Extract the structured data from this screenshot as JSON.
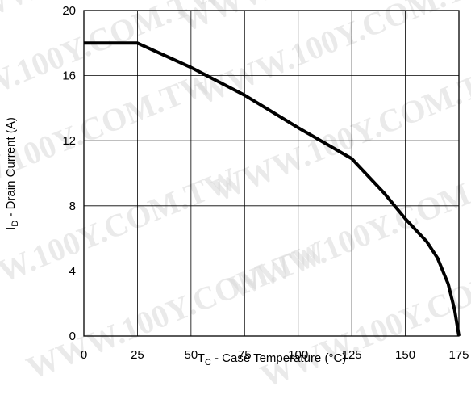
{
  "chart_data": {
    "type": "line",
    "xlabel": {
      "main": "T",
      "sub": "C",
      "rest": " - Case Temperature (°C)"
    },
    "ylabel": {
      "main": "I",
      "sub": "D",
      "rest": " - Drain Current (A)"
    },
    "xlim": [
      0,
      175
    ],
    "ylim": [
      0,
      20
    ],
    "x_ticks": [
      "0",
      "25",
      "50",
      "75",
      "100",
      "125",
      "150",
      "175"
    ],
    "y_ticks": [
      "0",
      "4",
      "8",
      "12",
      "16",
      "20"
    ],
    "grid": true,
    "series": [
      {
        "points": [
          [
            0,
            18.0
          ],
          [
            25,
            18.0
          ],
          [
            50,
            16.5
          ],
          [
            75,
            14.8
          ],
          [
            100,
            12.8
          ],
          [
            125,
            10.9
          ],
          [
            140,
            8.8
          ],
          [
            150,
            7.2
          ],
          [
            160,
            5.8
          ],
          [
            165,
            4.8
          ],
          [
            170,
            3.2
          ],
          [
            173,
            1.6
          ],
          [
            175,
            0.0
          ]
        ]
      }
    ],
    "colors": {
      "line": "#000000",
      "grid": "#000000",
      "background": "#ffffff"
    }
  },
  "watermark": {
    "text": "WWW.100Y.COM.TW"
  }
}
